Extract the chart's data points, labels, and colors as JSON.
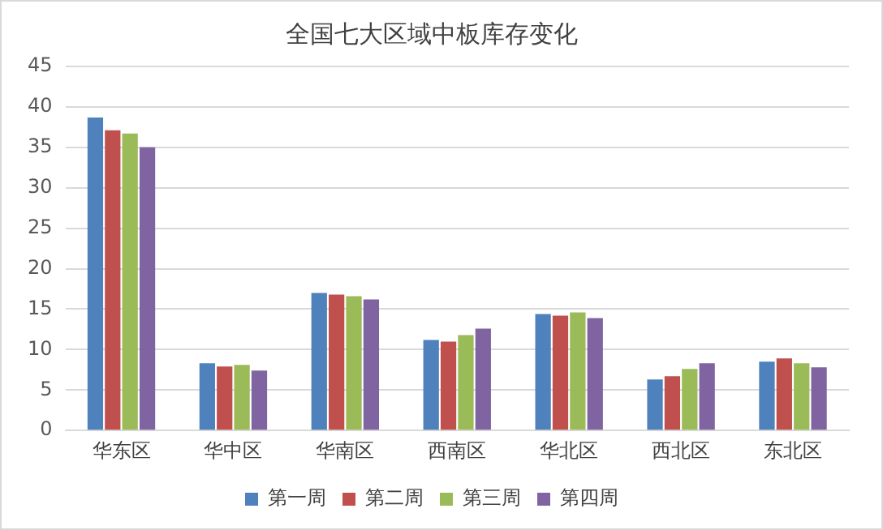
{
  "chart_data": {
    "type": "bar",
    "title": "全国七大区域中板库存变化",
    "categories": [
      "华东区",
      "华中区",
      "华南区",
      "西南区",
      "华北区",
      "西北区",
      "东北区"
    ],
    "series": [
      {
        "name": "第一周",
        "color": "#4f81bd",
        "values": [
          38.7,
          8.3,
          17.0,
          11.2,
          14.4,
          6.3,
          8.5
        ]
      },
      {
        "name": "第二周",
        "color": "#c0504d",
        "values": [
          37.1,
          7.9,
          16.8,
          11.0,
          14.2,
          6.7,
          8.9
        ]
      },
      {
        "name": "第三周",
        "color": "#9bbb59",
        "values": [
          36.7,
          8.1,
          16.6,
          11.8,
          14.6,
          7.6,
          8.3
        ]
      },
      {
        "name": "第四周",
        "color": "#8064a2",
        "values": [
          35.0,
          7.4,
          16.2,
          12.6,
          13.9,
          8.3,
          7.8
        ]
      }
    ],
    "ylim": [
      0,
      45
    ],
    "yticks": [
      0,
      5,
      10,
      15,
      20,
      25,
      30,
      35,
      40,
      45
    ],
    "grid": "y",
    "legend": "bottom"
  }
}
